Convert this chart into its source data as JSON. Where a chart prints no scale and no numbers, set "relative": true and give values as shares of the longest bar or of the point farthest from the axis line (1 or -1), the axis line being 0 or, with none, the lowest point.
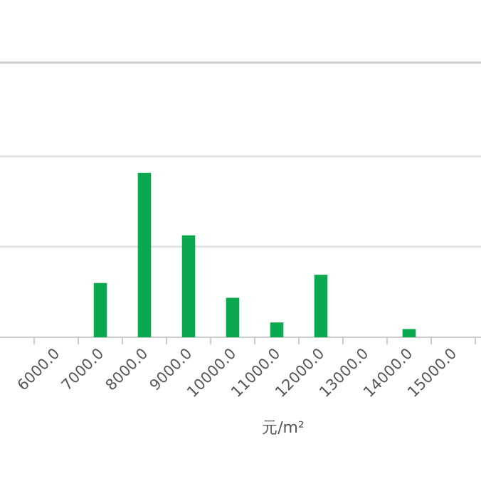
{
  "chart_data": {
    "type": "bar",
    "relative": true,
    "xlabel": "元/m²",
    "categories": [
      "6000.0",
      "7000.0",
      "8000.0",
      "9000.0",
      "10000.0",
      "11000.0",
      "12000.0",
      "13000.0",
      "14000.0",
      "15000.0"
    ],
    "values": [
      0,
      0.33,
      1,
      0.62,
      0.24,
      0.09,
      0.38,
      0,
      0.05,
      0
    ],
    "color": "#0aa84f",
    "ref_lines": [
      {
        "axis": "y",
        "value": 0.55,
        "color": "#e3e3e3"
      },
      {
        "axis": "y",
        "value": 1.1,
        "color": "#e3e3e3"
      },
      {
        "axis": "y",
        "value": 1.67,
        "color": "#cccccc"
      }
    ]
  }
}
